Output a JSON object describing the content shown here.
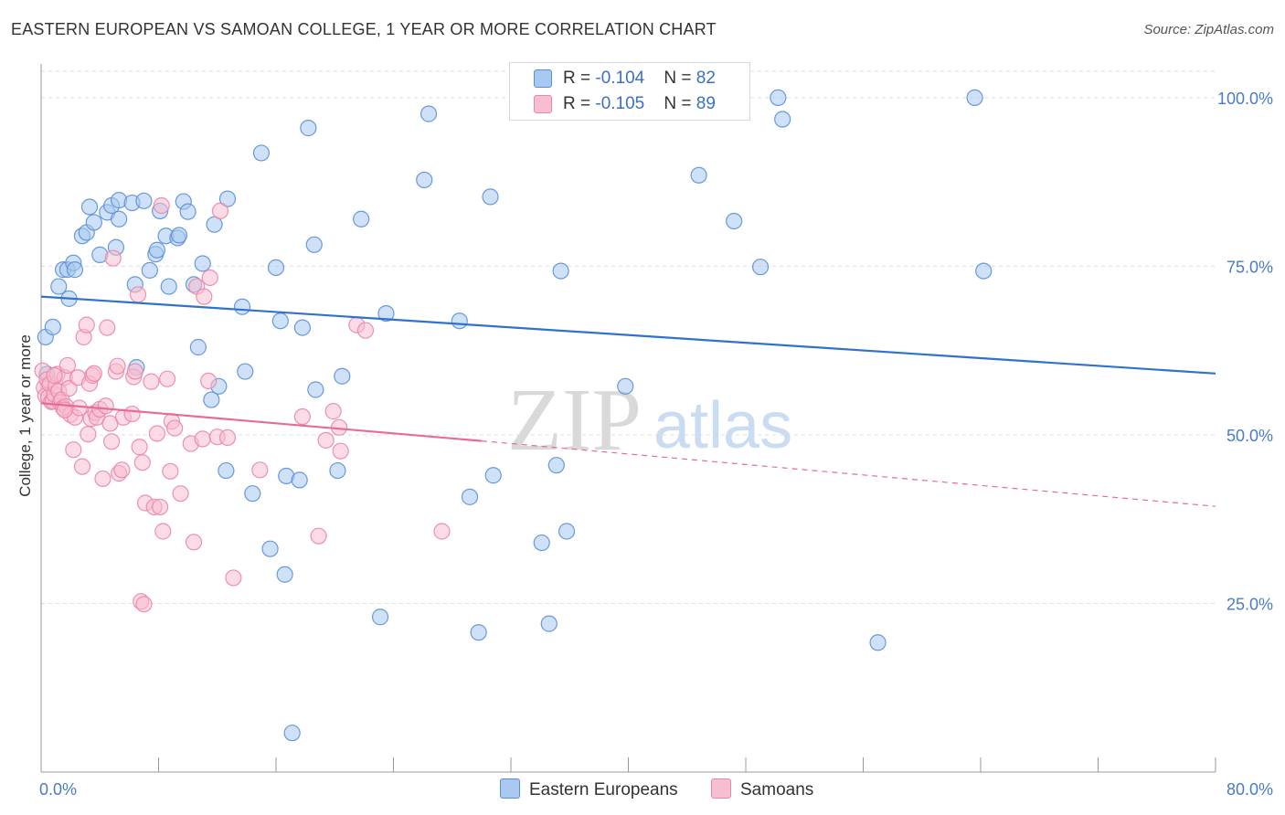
{
  "title": "EASTERN EUROPEAN VS SAMOAN COLLEGE, 1 YEAR OR MORE CORRELATION CHART",
  "source": "Source: ZipAtlas.com",
  "watermark": {
    "zip": "ZIP",
    "atlas": "atlas"
  },
  "colors": {
    "blue_fill": "#a8c8f0",
    "blue_stroke": "#5b8fd6",
    "blue_line": "#2f72cc",
    "pink_fill": "#f7bdd0",
    "pink_stroke": "#ea86a8",
    "pink_line": "#e86a98",
    "tick_label": "#4a7bc8",
    "grid": "#dddddd"
  },
  "legend": {
    "rows": [
      {
        "r_label": "R = ",
        "r_value": "-0.104",
        "n_label": "N = ",
        "n_value": "82",
        "color": "#a8c8f0"
      },
      {
        "r_label": "R = ",
        "r_value": "-0.105",
        "n_label": "N = ",
        "n_value": "89",
        "color": "#f7bdd0"
      }
    ]
  },
  "bottom_legend": [
    {
      "label": "Eastern Europeans",
      "color": "#a8c8f0"
    },
    {
      "label": "Samoans",
      "color": "#f7bdd0"
    }
  ],
  "chart_data": {
    "type": "scatter",
    "title": "EASTERN EUROPEAN VS SAMOAN COLLEGE, 1 YEAR OR MORE CORRELATION CHART",
    "xlabel": "",
    "ylabel": "College, 1 year or more",
    "xlim": [
      0,
      80
    ],
    "ylim": [
      0,
      105
    ],
    "x_tick_labels": [
      "0.0%",
      "80.0%"
    ],
    "y_ticks": [
      25,
      50,
      75,
      100
    ],
    "y_tick_labels": [
      "25.0%",
      "50.0%",
      "75.0%",
      "100.0%"
    ],
    "grid": true,
    "series": [
      {
        "name": "Eastern Europeans",
        "r": -0.104,
        "n": 82,
        "trend": {
          "x0": 0,
          "y0": 70.5,
          "x1": 80,
          "y1": 59.1
        },
        "points": [
          [
            0.3,
            64.5
          ],
          [
            0.8,
            66
          ],
          [
            1.2,
            72
          ],
          [
            1.5,
            74.5
          ],
          [
            1.8,
            74.5
          ],
          [
            2.2,
            75.5
          ],
          [
            2.3,
            74.5
          ],
          [
            2.8,
            79.5
          ],
          [
            3.1,
            80
          ],
          [
            3.3,
            83.8
          ],
          [
            3.6,
            81.5
          ],
          [
            4,
            76.7
          ],
          [
            4.5,
            83
          ],
          [
            4.8,
            84
          ],
          [
            5.1,
            77.8
          ],
          [
            5.3,
            82
          ],
          [
            5.3,
            84.8
          ],
          [
            6.2,
            84.4
          ],
          [
            6.4,
            72.3
          ],
          [
            6.5,
            60
          ],
          [
            7,
            84.7
          ],
          [
            7.4,
            74.4
          ],
          [
            7.8,
            76.8
          ],
          [
            7.9,
            77.4
          ],
          [
            8.1,
            83.2
          ],
          [
            8.5,
            79.5
          ],
          [
            8.7,
            72
          ],
          [
            9.3,
            79.2
          ],
          [
            9.4,
            79.6
          ],
          [
            9.7,
            84.6
          ],
          [
            10,
            83.1
          ],
          [
            10.4,
            72.3
          ],
          [
            10.7,
            63
          ],
          [
            11,
            75.4
          ],
          [
            11.6,
            55.2
          ],
          [
            11.8,
            81.2
          ],
          [
            12.1,
            57.2
          ],
          [
            12.6,
            44.7
          ],
          [
            12.7,
            85
          ],
          [
            13.7,
            69
          ],
          [
            13.9,
            59.4
          ],
          [
            14.4,
            41.3
          ],
          [
            15,
            91.8
          ],
          [
            15.6,
            33.1
          ],
          [
            16,
            74.8
          ],
          [
            16.3,
            66.9
          ],
          [
            16.6,
            29.3
          ],
          [
            16.7,
            43.9
          ],
          [
            17.1,
            5.8
          ],
          [
            17.6,
            43.3
          ],
          [
            17.8,
            65.9
          ],
          [
            18.2,
            95.5
          ],
          [
            18.6,
            78.2
          ],
          [
            18.7,
            56.7
          ],
          [
            20.2,
            44.7
          ],
          [
            20.5,
            58.7
          ],
          [
            21.8,
            82
          ],
          [
            23.1,
            23
          ],
          [
            23.5,
            68
          ],
          [
            26.1,
            87.8
          ],
          [
            26.4,
            97.6
          ],
          [
            28.5,
            66.9
          ],
          [
            29.2,
            40.8
          ],
          [
            29.8,
            20.7
          ],
          [
            30.6,
            85.3
          ],
          [
            30.8,
            44
          ],
          [
            34.1,
            34
          ],
          [
            34.6,
            22
          ],
          [
            35.1,
            45.5
          ],
          [
            35.4,
            74.3
          ],
          [
            35.8,
            35.7
          ],
          [
            39.8,
            57.2
          ],
          [
            44.8,
            88.5
          ],
          [
            47.2,
            81.7
          ],
          [
            49,
            74.9
          ],
          [
            50.2,
            100
          ],
          [
            50.5,
            96.8
          ],
          [
            57,
            19.2
          ],
          [
            63.6,
            100
          ],
          [
            64.2,
            74.3
          ],
          [
            0.4,
            59
          ],
          [
            1.9,
            70.2
          ]
        ]
      },
      {
        "name": "Samoans",
        "r": -0.105,
        "n": 89,
        "trend": {
          "x0": 0,
          "y0": 54.7,
          "x1": 30,
          "y1": 49.1,
          "dash_x1": 80,
          "dash_y1": 39.4
        },
        "points": [
          [
            0.1,
            59.5
          ],
          [
            0.2,
            57
          ],
          [
            0.3,
            55.8
          ],
          [
            0.4,
            58.2
          ],
          [
            0.5,
            55.6
          ],
          [
            0.6,
            57.5
          ],
          [
            0.7,
            54.9
          ],
          [
            0.8,
            55
          ],
          [
            0.9,
            56
          ],
          [
            1,
            57.3
          ],
          [
            1.1,
            59
          ],
          [
            1.2,
            56.5
          ],
          [
            1.3,
            54.8
          ],
          [
            1.4,
            55.2
          ],
          [
            1.5,
            54
          ],
          [
            1.6,
            58.5
          ],
          [
            1.7,
            54.2
          ],
          [
            1.8,
            60.3
          ],
          [
            1.9,
            56.9
          ],
          [
            2,
            53
          ],
          [
            2.2,
            47.8
          ],
          [
            2.3,
            52.6
          ],
          [
            2.5,
            58.5
          ],
          [
            2.6,
            54
          ],
          [
            2.8,
            45.3
          ],
          [
            2.9,
            64.5
          ],
          [
            3.1,
            66.3
          ],
          [
            3.2,
            50.1
          ],
          [
            3.3,
            57.6
          ],
          [
            3.4,
            52.4
          ],
          [
            3.5,
            58.8
          ],
          [
            3.6,
            59.1
          ],
          [
            3.7,
            53.3
          ],
          [
            3.8,
            52.6
          ],
          [
            4,
            53.8
          ],
          [
            4.2,
            43.5
          ],
          [
            4.4,
            54.3
          ],
          [
            4.5,
            65.9
          ],
          [
            4.7,
            51.7
          ],
          [
            4.8,
            49
          ],
          [
            4.9,
            76.2
          ],
          [
            5.1,
            59.4
          ],
          [
            5.2,
            60.2
          ],
          [
            5.3,
            44.3
          ],
          [
            5.5,
            44.8
          ],
          [
            5.6,
            52.6
          ],
          [
            6.2,
            53.1
          ],
          [
            6.3,
            58.6
          ],
          [
            6.4,
            59.4
          ],
          [
            6.6,
            70.8
          ],
          [
            6.7,
            48.2
          ],
          [
            6.8,
            25.3
          ],
          [
            6.9,
            45.9
          ],
          [
            7,
            24.9
          ],
          [
            7.1,
            39.9
          ],
          [
            7.5,
            57.9
          ],
          [
            7.7,
            39.3
          ],
          [
            7.9,
            50.2
          ],
          [
            8.1,
            39.3
          ],
          [
            8.2,
            84
          ],
          [
            8.3,
            35.7
          ],
          [
            8.6,
            58.3
          ],
          [
            8.8,
            44.6
          ],
          [
            8.9,
            52
          ],
          [
            9.1,
            51
          ],
          [
            9.5,
            41.3
          ],
          [
            10.2,
            48.7
          ],
          [
            10.4,
            34.1
          ],
          [
            10.6,
            72
          ],
          [
            11,
            49.4
          ],
          [
            11.1,
            70.5
          ],
          [
            11.4,
            58
          ],
          [
            11.5,
            73.3
          ],
          [
            12.2,
            83.2
          ],
          [
            12,
            49.7
          ],
          [
            12.7,
            49.6
          ],
          [
            13.1,
            28.8
          ],
          [
            14.9,
            44.8
          ],
          [
            17.8,
            52.7
          ],
          [
            18.9,
            35
          ],
          [
            19.4,
            49.2
          ],
          [
            19.9,
            53.5
          ],
          [
            20.3,
            51.1
          ],
          [
            20.4,
            47.6
          ],
          [
            21.5,
            66.3
          ],
          [
            22.1,
            65.5
          ],
          [
            27.3,
            35.7
          ],
          [
            1.6,
            53.7
          ],
          [
            0.9,
            58.8
          ]
        ]
      }
    ]
  }
}
